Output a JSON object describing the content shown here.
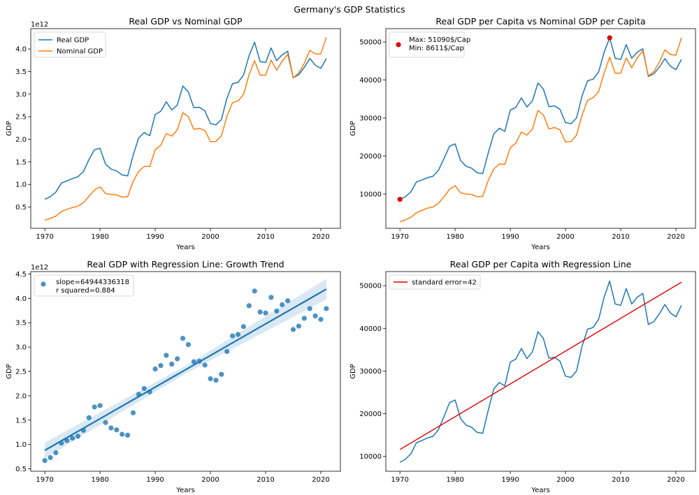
{
  "suptitle": "Germany's GDP Statistics",
  "chart_data": [
    {
      "type": "line",
      "title": "Real GDP vs Nominal GDP",
      "xlabel": "Years",
      "ylabel": "GDP",
      "offset_label": "1e12",
      "xlim": [
        1967.45,
        2023.55
      ],
      "ylim": [
        0.03,
        4.45
      ],
      "xticks": [
        1970,
        1980,
        1990,
        2000,
        2010,
        2020
      ],
      "yticks": [
        0.5,
        1.0,
        1.5,
        2.0,
        2.5,
        3.0,
        3.5,
        4.0
      ],
      "ytick_labels": [
        "0.5",
        "1.0",
        "1.5",
        "2.0",
        "2.5",
        "3.0",
        "3.5",
        "4.0"
      ],
      "legend": "upper-left",
      "x": [
        1970,
        1971,
        1972,
        1973,
        1974,
        1975,
        1976,
        1977,
        1978,
        1979,
        1980,
        1981,
        1982,
        1983,
        1984,
        1985,
        1986,
        1987,
        1988,
        1989,
        1990,
        1991,
        1992,
        1993,
        1994,
        1995,
        1996,
        1997,
        1998,
        1999,
        2000,
        2001,
        2002,
        2003,
        2004,
        2005,
        2006,
        2007,
        2008,
        2009,
        2010,
        2011,
        2012,
        2013,
        2014,
        2015,
        2016,
        2017,
        2018,
        2019,
        2020,
        2021
      ],
      "series": [
        {
          "name": "Real GDP",
          "color": "#1f77b4",
          "values": [
            0.67,
            0.73,
            0.83,
            1.03,
            1.08,
            1.13,
            1.17,
            1.29,
            1.55,
            1.77,
            1.8,
            1.45,
            1.34,
            1.3,
            1.21,
            1.19,
            1.65,
            2.03,
            2.15,
            2.08,
            2.55,
            2.62,
            2.83,
            2.65,
            2.76,
            3.18,
            3.05,
            2.7,
            2.71,
            2.63,
            2.35,
            2.32,
            2.44,
            2.91,
            3.23,
            3.26,
            3.42,
            3.85,
            4.15,
            3.72,
            3.7,
            4.02,
            3.74,
            3.87,
            3.95,
            3.36,
            3.43,
            3.59,
            3.79,
            3.64,
            3.57,
            3.79
          ]
        },
        {
          "name": "Nominal GDP",
          "color": "#ff7f0e",
          "values": [
            0.21,
            0.25,
            0.3,
            0.4,
            0.45,
            0.49,
            0.52,
            0.6,
            0.74,
            0.88,
            0.95,
            0.8,
            0.78,
            0.77,
            0.72,
            0.73,
            1.07,
            1.29,
            1.4,
            1.4,
            1.77,
            1.87,
            2.13,
            2.07,
            2.21,
            2.59,
            2.5,
            2.22,
            2.24,
            2.2,
            1.95,
            1.95,
            2.08,
            2.51,
            2.81,
            2.85,
            2.99,
            3.43,
            3.74,
            3.42,
            3.42,
            3.75,
            3.53,
            3.73,
            3.88,
            3.36,
            3.47,
            3.68,
            3.97,
            3.89,
            3.89,
            4.26
          ]
        }
      ]
    },
    {
      "type": "line",
      "title": "Real GDP per Capita vs Nominal GDP per Capita",
      "xlabel": "Years",
      "ylabel": "GDP",
      "xlim": [
        1967.45,
        2023.55
      ],
      "ylim": [
        1000,
        53500
      ],
      "xticks": [
        1970,
        1980,
        1990,
        2000,
        2010,
        2020
      ],
      "yticks": [
        10000,
        20000,
        30000,
        40000,
        50000
      ],
      "ytick_labels": [
        "10000",
        "20000",
        "30000",
        "40000",
        "50000"
      ],
      "legend": "upper-left",
      "legend_text": [
        "Max: 51090$/Cap",
        "Min: 8611$/Cap"
      ],
      "markers": [
        {
          "x": 2008,
          "y": 51090,
          "color": "#e00000"
        },
        {
          "x": 1970,
          "y": 8611,
          "color": "#e00000"
        }
      ],
      "x": [
        1970,
        1971,
        1972,
        1973,
        1974,
        1975,
        1976,
        1977,
        1978,
        1979,
        1980,
        1981,
        1982,
        1983,
        1984,
        1985,
        1986,
        1987,
        1988,
        1989,
        1990,
        1991,
        1992,
        1993,
        1994,
        1995,
        1996,
        1997,
        1998,
        1999,
        2000,
        2001,
        2002,
        2003,
        2004,
        2005,
        2006,
        2007,
        2008,
        2009,
        2010,
        2011,
        2012,
        2013,
        2014,
        2015,
        2016,
        2017,
        2018,
        2019,
        2020,
        2021
      ],
      "series": [
        {
          "name": "Real GDP per Capita",
          "color": "#1f77b4",
          "values": [
            8611,
            9300,
            10600,
            13200,
            13700,
            14300,
            14700,
            16300,
            19400,
            22600,
            23200,
            18800,
            17300,
            16800,
            15600,
            15400,
            20800,
            25800,
            27300,
            26500,
            32100,
            32800,
            35300,
            32900,
            34500,
            39200,
            37600,
            33000,
            33200,
            32300,
            28800,
            28500,
            30000,
            35800,
            39800,
            40200,
            42100,
            47300,
            51090,
            45700,
            45400,
            49300,
            45700,
            47300,
            48200,
            40900,
            41600,
            43400,
            45600,
            43600,
            42700,
            45400
          ]
        },
        {
          "name": "Nominal GDP per Capita",
          "color": "#ff7f0e",
          "values": [
            2700,
            3200,
            3900,
            5100,
            5700,
            6300,
            6600,
            7600,
            9300,
            11300,
            12200,
            10300,
            10000,
            9900,
            9300,
            9400,
            13600,
            16600,
            17900,
            17800,
            22200,
            23400,
            26300,
            25500,
            27100,
            32000,
            30800,
            27100,
            27500,
            26900,
            23700,
            23800,
            25500,
            30700,
            34700,
            35300,
            36900,
            41800,
            46000,
            41800,
            41800,
            45800,
            43200,
            45800,
            47700,
            41100,
            42200,
            44700,
            47900,
            46700,
            46500,
            51100
          ]
        }
      ]
    },
    {
      "type": "scatter",
      "title": "Real GDP with Regression Line: Growth Trend",
      "xlabel": "Years",
      "ylabel": "GDP",
      "offset_label": "1e12",
      "xlim": [
        1967.45,
        2023.55
      ],
      "ylim": [
        0.45,
        4.55
      ],
      "xticks": [
        1970,
        1980,
        1990,
        2000,
        2010,
        2020
      ],
      "yticks": [
        0.5,
        1.0,
        1.5,
        2.0,
        2.5,
        3.0,
        3.5,
        4.0,
        4.5
      ],
      "ytick_labels": [
        "0.5",
        "1.0",
        "1.5",
        "2.0",
        "2.5",
        "3.0",
        "3.5",
        "4.0",
        "4.5"
      ],
      "legend": "upper-left",
      "legend_text": [
        "slope=64944336318",
        "r squared=0.884"
      ],
      "regression": {
        "x0": 1970,
        "y0": 0.88,
        "x1": 2021,
        "y1": 4.19,
        "band_start": 0.16,
        "band_mid": 0.08,
        "band_end": 0.21,
        "color": "#1f77b4"
      },
      "x": [
        1970,
        1971,
        1972,
        1973,
        1974,
        1975,
        1976,
        1977,
        1978,
        1979,
        1980,
        1981,
        1982,
        1983,
        1984,
        1985,
        1986,
        1987,
        1988,
        1989,
        1990,
        1991,
        1992,
        1993,
        1994,
        1995,
        1996,
        1997,
        1998,
        1999,
        2000,
        2001,
        2002,
        2003,
        2004,
        2005,
        2006,
        2007,
        2008,
        2009,
        2010,
        2011,
        2012,
        2013,
        2014,
        2015,
        2016,
        2017,
        2018,
        2019,
        2020,
        2021
      ],
      "series": [
        {
          "name": "Real GDP",
          "color": "#1f77b4",
          "values": [
            0.67,
            0.73,
            0.83,
            1.03,
            1.08,
            1.13,
            1.17,
            1.29,
            1.55,
            1.77,
            1.8,
            1.45,
            1.34,
            1.3,
            1.21,
            1.19,
            1.65,
            2.03,
            2.15,
            2.08,
            2.55,
            2.62,
            2.83,
            2.65,
            2.76,
            3.18,
            3.05,
            2.7,
            2.71,
            2.63,
            2.35,
            2.32,
            2.44,
            2.91,
            3.23,
            3.26,
            3.42,
            3.85,
            4.15,
            3.72,
            3.7,
            4.02,
            3.74,
            3.87,
            3.95,
            3.36,
            3.43,
            3.59,
            3.79,
            3.64,
            3.57,
            3.79
          ]
        }
      ]
    },
    {
      "type": "line",
      "title": "Real GDP per Capita with Regression Line",
      "xlabel": "Years",
      "ylabel": "GDP",
      "xlim": [
        1967.45,
        2023.55
      ],
      "ylim": [
        6500,
        53300
      ],
      "xticks": [
        1970,
        1980,
        1990,
        2000,
        2010,
        2020
      ],
      "yticks": [
        10000,
        20000,
        30000,
        40000,
        50000
      ],
      "ytick_labels": [
        "10000",
        "20000",
        "30000",
        "40000",
        "50000"
      ],
      "legend": "upper-left",
      "legend_text": [
        "standard error=42"
      ],
      "regression": {
        "x0": 1970,
        "y0": 11600,
        "x1": 2021,
        "y1": 50800,
        "color": "#e00000"
      },
      "x": [
        1970,
        1971,
        1972,
        1973,
        1974,
        1975,
        1976,
        1977,
        1978,
        1979,
        1980,
        1981,
        1982,
        1983,
        1984,
        1985,
        1986,
        1987,
        1988,
        1989,
        1990,
        1991,
        1992,
        1993,
        1994,
        1995,
        1996,
        1997,
        1998,
        1999,
        2000,
        2001,
        2002,
        2003,
        2004,
        2005,
        2006,
        2007,
        2008,
        2009,
        2010,
        2011,
        2012,
        2013,
        2014,
        2015,
        2016,
        2017,
        2018,
        2019,
        2020,
        2021
      ],
      "series": [
        {
          "name": "Real GDP per Capita",
          "color": "#1f77b4",
          "values": [
            8611,
            9300,
            10600,
            13200,
            13700,
            14300,
            14700,
            16300,
            19400,
            22600,
            23200,
            18800,
            17300,
            16800,
            15600,
            15400,
            20800,
            25800,
            27300,
            26500,
            32100,
            32800,
            35300,
            32900,
            34500,
            39200,
            37600,
            33000,
            33200,
            32300,
            28800,
            28500,
            30000,
            35800,
            39800,
            40200,
            42100,
            47300,
            51090,
            45700,
            45400,
            49300,
            45700,
            47300,
            48200,
            40900,
            41600,
            43400,
            45600,
            43600,
            42700,
            45400
          ]
        }
      ]
    }
  ]
}
